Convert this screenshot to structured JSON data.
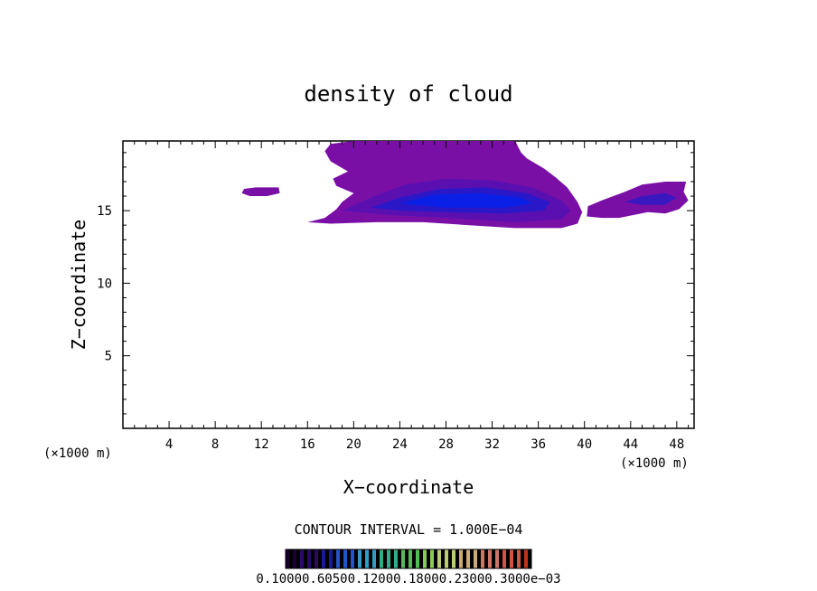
{
  "chart_data": {
    "type": "heatmap",
    "title": "density of cloud",
    "xlabel": "X−coordinate",
    "ylabel": "Z−coordinate",
    "x_unit_left": "(×1000 m)",
    "x_unit_right": "(×1000 m)",
    "xlim": [
      0,
      49.5
    ],
    "ylim": [
      0,
      19.8
    ],
    "x_ticks": [
      4,
      8,
      12,
      16,
      20,
      24,
      28,
      32,
      36,
      40,
      44,
      48
    ],
    "y_ticks": [
      5,
      10,
      15
    ],
    "contour_interval": "CONTOUR INTERVAL = 1.000E−04",
    "colorbar": {
      "label_text": "0.10000.60500.12000.18000.23000.3000e−03",
      "colors": [
        "#1a0033",
        "#2a0a66",
        "#1a1a99",
        "#2255cc",
        "#3399cc",
        "#33aa88",
        "#55bb55",
        "#88cc55",
        "#bbcc77",
        "#ccaa77",
        "#cc7766",
        "#cc5544",
        "#bb3322"
      ]
    },
    "regions": [
      {
        "name": "main-cloud-outer",
        "level": 0.1,
        "color": "#7a0fa6",
        "points": [
          [
            16.0,
            14.2
          ],
          [
            17.5,
            14.5
          ],
          [
            18.5,
            15.1
          ],
          [
            19.0,
            15.6
          ],
          [
            20.0,
            16.2
          ],
          [
            18.5,
            16.7
          ],
          [
            18.2,
            17.2
          ],
          [
            19.5,
            17.7
          ],
          [
            18.0,
            18.4
          ],
          [
            17.5,
            19.1
          ],
          [
            18.0,
            19.6
          ],
          [
            20.0,
            19.8
          ],
          [
            23.0,
            19.8
          ],
          [
            27.0,
            19.8
          ],
          [
            30.0,
            19.8
          ],
          [
            34.0,
            19.8
          ],
          [
            34.5,
            19.0
          ],
          [
            35.0,
            18.6
          ],
          [
            36.5,
            17.9
          ],
          [
            37.5,
            17.3
          ],
          [
            38.5,
            16.6
          ],
          [
            39.4,
            15.6
          ],
          [
            39.8,
            14.9
          ],
          [
            39.4,
            14.1
          ],
          [
            38.0,
            13.8
          ],
          [
            34.0,
            13.8
          ],
          [
            30.0,
            14.0
          ],
          [
            26.0,
            14.2
          ],
          [
            22.0,
            14.2
          ],
          [
            18.0,
            14.1
          ]
        ]
      },
      {
        "name": "main-cloud-mid",
        "level": 0.4,
        "color": "#5a10b0",
        "points": [
          [
            19.0,
            15.0
          ],
          [
            21.5,
            15.9
          ],
          [
            24.5,
            16.8
          ],
          [
            28.0,
            17.2
          ],
          [
            32.0,
            17.1
          ],
          [
            35.5,
            16.6
          ],
          [
            38.0,
            15.7
          ],
          [
            38.8,
            15.0
          ],
          [
            38.0,
            14.4
          ],
          [
            34.0,
            14.2
          ],
          [
            28.0,
            14.5
          ],
          [
            23.0,
            14.7
          ]
        ]
      },
      {
        "name": "main-cloud-inner",
        "level": 0.9,
        "color": "#2a18c8",
        "points": [
          [
            21.5,
            15.2
          ],
          [
            24.0,
            15.9
          ],
          [
            27.5,
            16.5
          ],
          [
            31.5,
            16.6
          ],
          [
            35.0,
            16.2
          ],
          [
            37.0,
            15.6
          ],
          [
            36.5,
            15.0
          ],
          [
            33.0,
            14.8
          ],
          [
            28.0,
            14.9
          ],
          [
            24.0,
            15.0
          ]
        ]
      },
      {
        "name": "main-cloud-core",
        "level": 1.5,
        "color": "#0a20e6",
        "points": [
          [
            24.0,
            15.5
          ],
          [
            27.0,
            16.1
          ],
          [
            31.0,
            16.2
          ],
          [
            34.5,
            15.9
          ],
          [
            35.5,
            15.5
          ],
          [
            33.0,
            15.2
          ],
          [
            28.0,
            15.2
          ]
        ]
      },
      {
        "name": "right-cloud-outer",
        "level": 0.1,
        "color": "#7a0fa6",
        "points": [
          [
            40.2,
            14.6
          ],
          [
            40.3,
            15.3
          ],
          [
            41.5,
            15.7
          ],
          [
            43.5,
            16.3
          ],
          [
            45.0,
            16.8
          ],
          [
            47.0,
            17.0
          ],
          [
            48.8,
            17.0
          ],
          [
            48.6,
            16.3
          ],
          [
            49.0,
            15.7
          ],
          [
            48.2,
            15.1
          ],
          [
            47.0,
            14.8
          ],
          [
            45.5,
            14.9
          ],
          [
            43.0,
            14.5
          ],
          [
            41.5,
            14.5
          ]
        ]
      },
      {
        "name": "right-cloud-inner",
        "level": 0.5,
        "color": "#3a18c0",
        "points": [
          [
            43.5,
            15.6
          ],
          [
            45.0,
            16.0
          ],
          [
            47.0,
            16.2
          ],
          [
            48.0,
            15.9
          ],
          [
            47.0,
            15.4
          ],
          [
            45.0,
            15.4
          ]
        ]
      },
      {
        "name": "left-patch",
        "level": 0.1,
        "color": "#7a0fa6",
        "points": [
          [
            10.3,
            16.2
          ],
          [
            10.5,
            16.5
          ],
          [
            11.5,
            16.6
          ],
          [
            13.5,
            16.6
          ],
          [
            13.6,
            16.2
          ],
          [
            12.5,
            16.0
          ],
          [
            11.0,
            16.0
          ]
        ]
      }
    ]
  }
}
